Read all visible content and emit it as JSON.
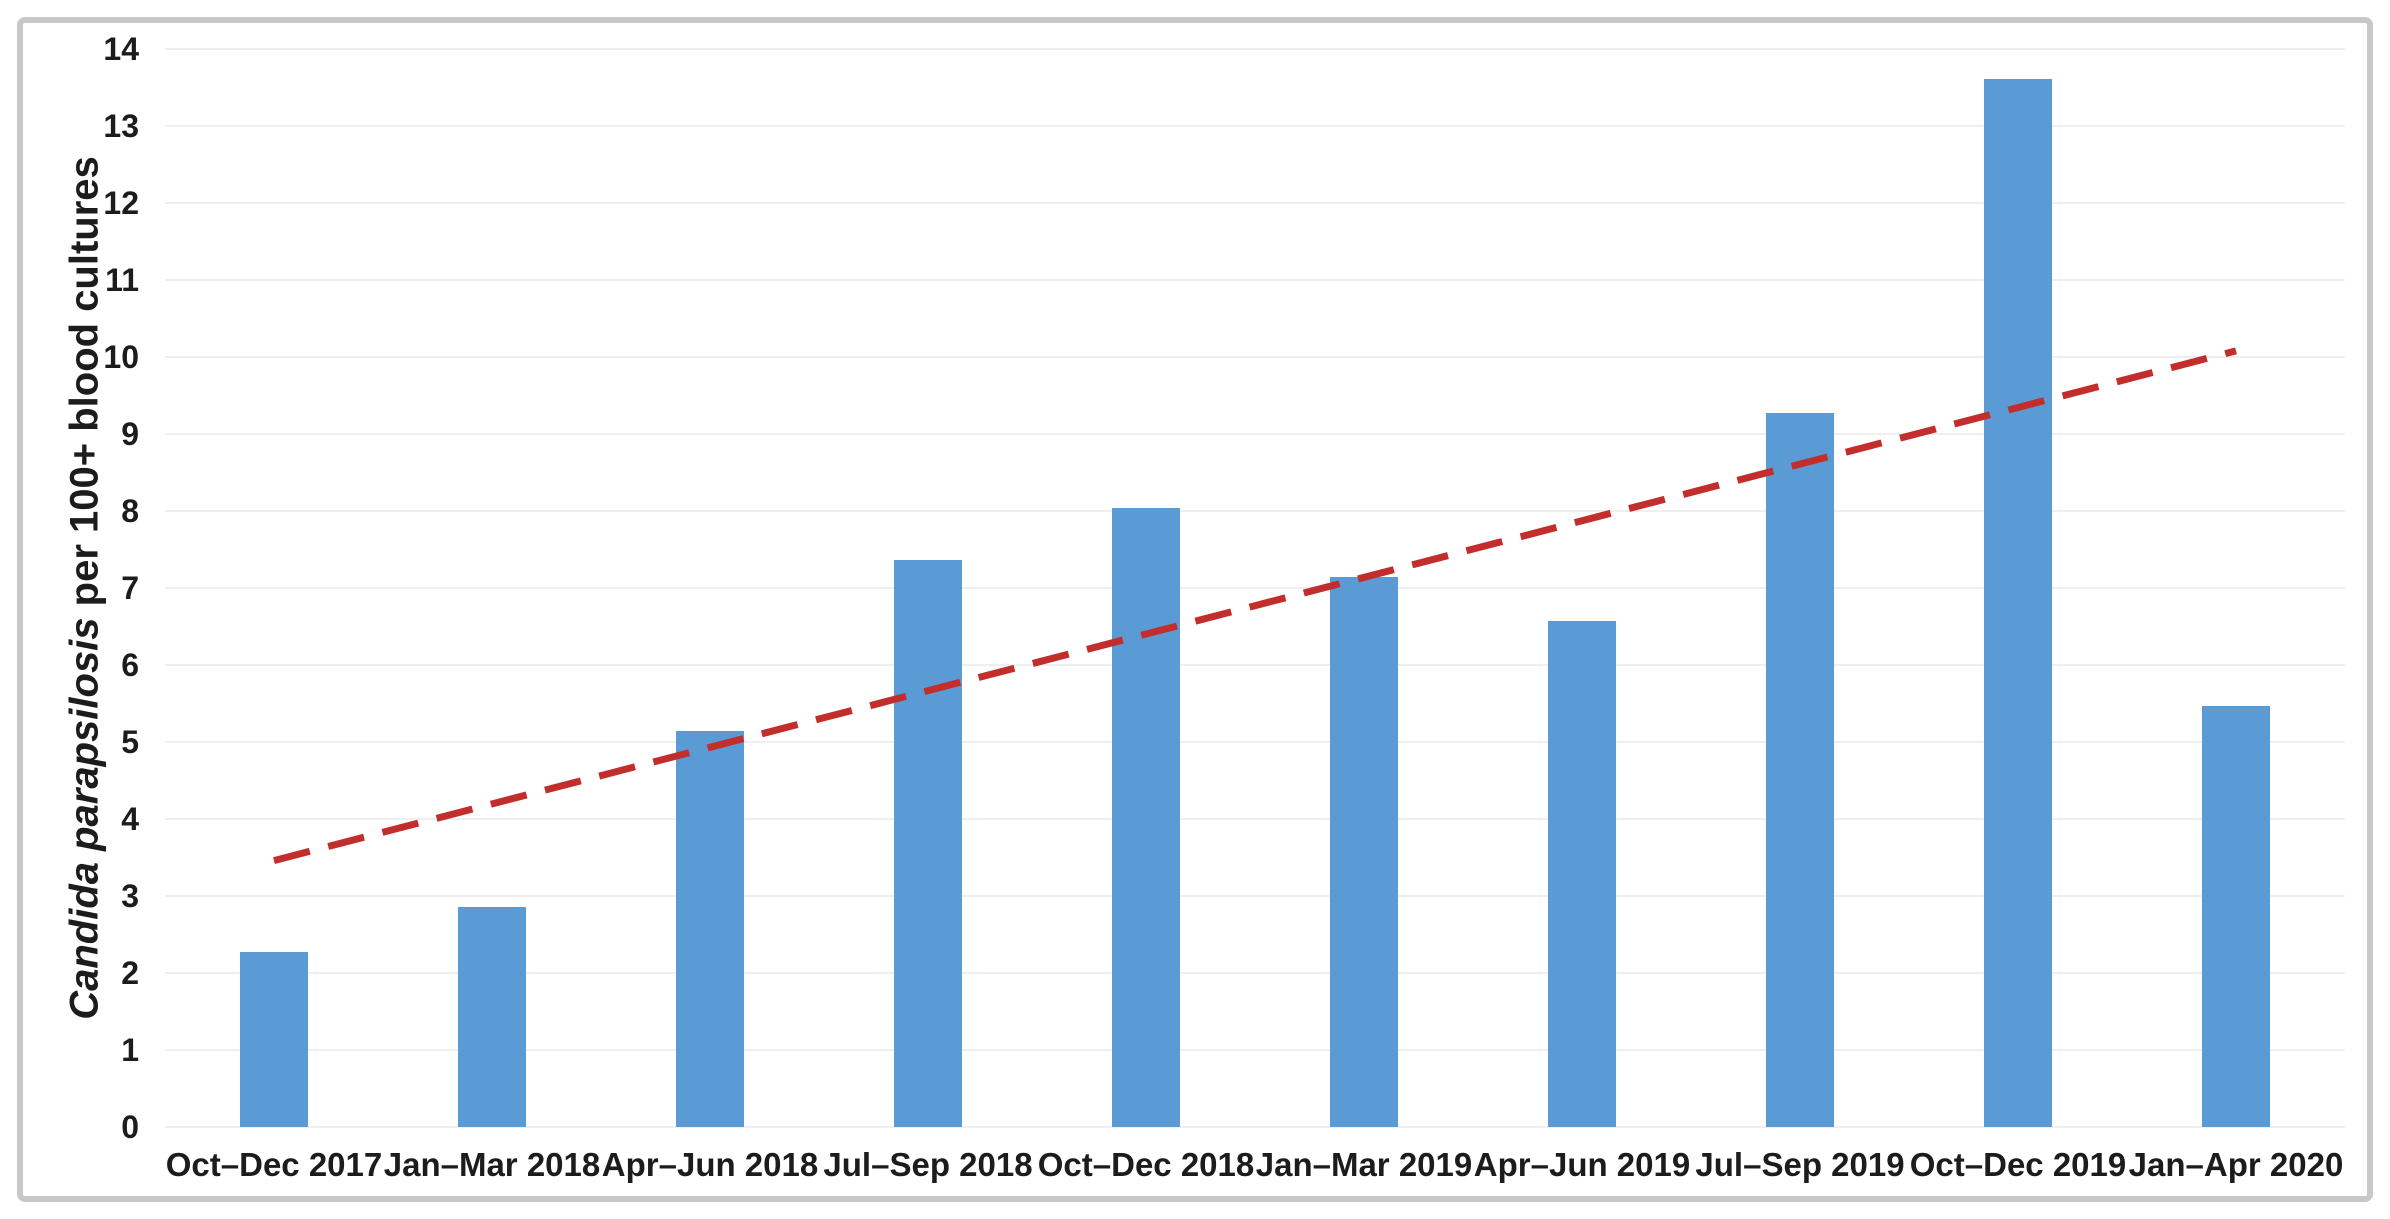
{
  "figure": {
    "background": "#ffffff",
    "border_color": "#c8c8c8"
  },
  "chart_data": {
    "type": "bar",
    "title": "",
    "xlabel": "",
    "ylabel_italic": "Candida parapsilosis",
    "ylabel_rest": " per 100+ blood cultures",
    "categories": [
      "Oct–Dec 2017",
      "Jan–Mar 2018",
      "Apr–Jun 2018",
      "Jul–Sep 2018",
      "Oct–Dec 2018",
      "Jan–Mar 2019",
      "Apr–Jun 2019",
      "Jul–Sep 2019",
      "Oct–Dec 2019",
      "Jan–Apr 2020"
    ],
    "values": [
      2.27,
      2.86,
      5.14,
      7.37,
      8.04,
      7.14,
      6.57,
      9.27,
      13.61,
      5.47
    ],
    "ylim": [
      0,
      14
    ],
    "yticks": [
      0,
      1,
      2,
      3,
      4,
      5,
      6,
      7,
      8,
      9,
      10,
      11,
      12,
      13,
      14
    ],
    "grid": true,
    "legend": "none",
    "bar_color": "#5b9bd5",
    "gridline_color": "#efefef",
    "trendline": {
      "style": "dashed",
      "color": "#c22e2c",
      "start_value": 3.46,
      "end_value": 10.08
    }
  }
}
